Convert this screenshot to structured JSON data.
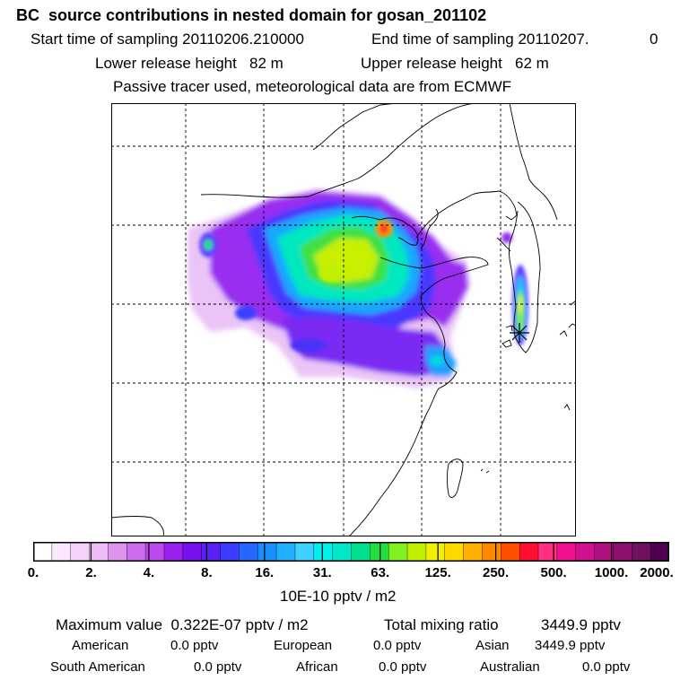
{
  "header": {
    "title": "BC  source contributions in nested domain for gosan_201102",
    "start_label": "Start time of sampling 20110206.210000",
    "end_label": "End time of sampling 20110207.",
    "end_suffix": "0",
    "lower_height": "Lower release height   82 m",
    "upper_height": "Upper release height   62 m",
    "tracer_note": "Passive tracer used, meteorological data are from ECMWF"
  },
  "colorbar": {
    "ticks": [
      "0.",
      "2.",
      "4.",
      "8.",
      "16.",
      "31.",
      "63.",
      "125.",
      "250.",
      "500.",
      "1000.",
      "2000."
    ],
    "unit": "10E-10 pptv / m2",
    "colors": [
      "#ffffff",
      "#fbe8ff",
      "#f5d2fb",
      "#efbcf8",
      "#dd94ee",
      "#cd6cef",
      "#bd4af0",
      "#9c20ef",
      "#7a10ef",
      "#5a20f8",
      "#3d3cff",
      "#2468ff",
      "#1890ff",
      "#20b0ff",
      "#40d0ff",
      "#00f0f0",
      "#00e8c8",
      "#00e090",
      "#20e040",
      "#80f020",
      "#c0f000",
      "#f0f000",
      "#ffd800",
      "#ffb000",
      "#ff8800",
      "#ff5000",
      "#ff1030",
      "#ff3080",
      "#f01090",
      "#d01090",
      "#b01080",
      "#901070",
      "#701060",
      "#500050"
    ]
  },
  "stats": {
    "max_value": "Maximum value  0.322E-07 pptv / m2",
    "total_mixing": "Total mixing ratio",
    "total_value": "3449.9 pptv",
    "regions": [
      {
        "name": "American",
        "value": "0.0 pptv"
      },
      {
        "name": "European",
        "value": "0.0 pptv"
      },
      {
        "name": "Asian",
        "value": "3449.9 pptv"
      },
      {
        "name": "South American",
        "value": "0.0 pptv"
      },
      {
        "name": "African",
        "value": "0.0 pptv"
      },
      {
        "name": "Australian",
        "value": "0.0 pptv"
      }
    ]
  }
}
